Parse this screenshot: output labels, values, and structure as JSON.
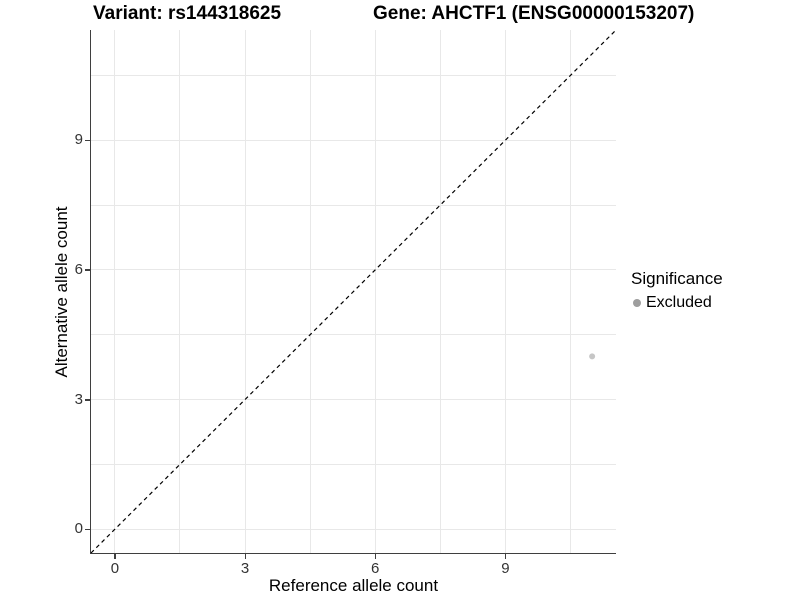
{
  "chart_data": {
    "type": "scatter",
    "title_left": "Variant: rs144318625",
    "title_right": "Gene: AHCTF1 (ENSG00000153207)",
    "xlabel": "Reference allele count",
    "ylabel": "Alternative allele count",
    "xlim": [
      -0.55,
      11.55
    ],
    "ylim": [
      -0.55,
      11.55
    ],
    "x_ticks": [
      0,
      3,
      6,
      9
    ],
    "y_ticks": [
      0,
      3,
      6,
      9
    ],
    "minor_gridlines": [
      1.5,
      4.5,
      7.5,
      10.5
    ],
    "grid": true,
    "gridline_color": "#e8e8e8",
    "axis_line_color": "#3f3f3f",
    "identity_line": {
      "style": "dashed",
      "color": "#000000",
      "x1": -0.55,
      "y1": -0.55,
      "x2": 11.55,
      "y2": 11.55
    },
    "series": [
      {
        "name": "Excluded",
        "color": "#c6c6c6",
        "point_radius": 3,
        "points": [
          {
            "x": 11,
            "y": 4
          }
        ]
      }
    ],
    "legend": {
      "title": "Significance",
      "position": "right",
      "entries": [
        {
          "label": "Excluded",
          "color": "#9e9e9e"
        }
      ]
    }
  }
}
